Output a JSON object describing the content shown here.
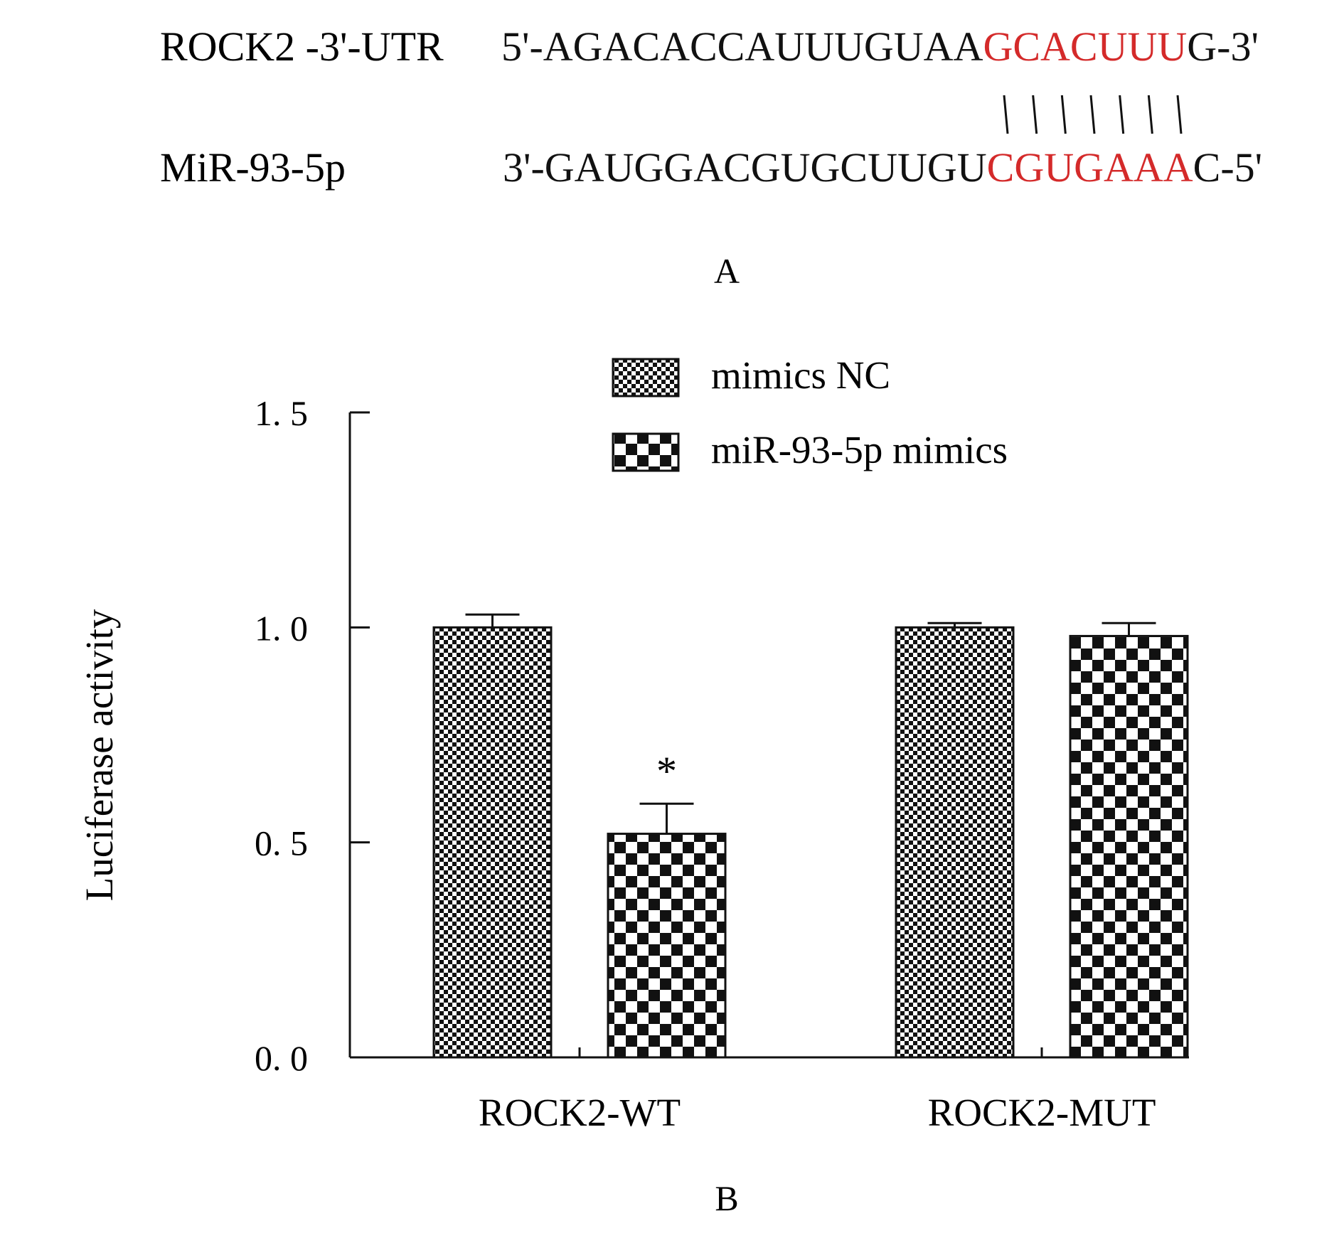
{
  "colors": {
    "text": "#111111",
    "highlight": "#d42a2a",
    "axis": "#111111",
    "pattern_dark": "#111111",
    "pattern_light": "#ffffff"
  },
  "panel_a": {
    "label": "A",
    "rows": [
      {
        "name": "ROCK2 -3'-UTR",
        "prefix": "5'-AGACACCAUUUGUAA",
        "highlight": "GCACUUU",
        "suffix": "G-3'"
      },
      {
        "name": "MiR-93-5p",
        "prefix": "3'-GAUGGACGUGCUUGU",
        "highlight": "CGUGAAA",
        "suffix": "C-5'"
      }
    ],
    "pair_count": 7
  },
  "panel_b": {
    "label": "B"
  },
  "chart_data": {
    "type": "bar",
    "title": "",
    "xlabel": "",
    "ylabel": "Luciferase activity",
    "ylim": [
      0,
      1.5
    ],
    "yticks": [
      0,
      0.5,
      1.0,
      1.5
    ],
    "ytick_labels": [
      "0. 0",
      "0. 5",
      "1. 0",
      "1. 5"
    ],
    "categories": [
      "ROCK2-WT",
      "ROCK2-MUT"
    ],
    "legend_position": "top-center",
    "grid": false,
    "series": [
      {
        "name": "mimics NC",
        "pattern": "fine-checker",
        "values": [
          1.0,
          1.0
        ],
        "errors": [
          0.03,
          0.01
        ]
      },
      {
        "name": "miR-93-5p mimics",
        "pattern": "coarse-checker",
        "values": [
          0.52,
          0.98
        ],
        "errors": [
          0.07,
          0.03
        ]
      }
    ],
    "annotations": [
      {
        "text": "*",
        "category": "ROCK2-WT",
        "series": "miR-93-5p mimics"
      }
    ]
  }
}
